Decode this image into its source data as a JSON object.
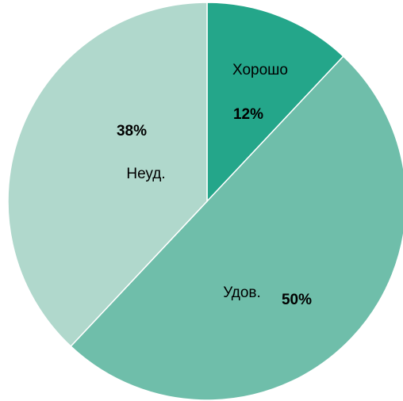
{
  "chart_data": {
    "type": "pie",
    "categories": [
      "Хорошо",
      "Удов.",
      "Неуд."
    ],
    "values": [
      12,
      50,
      38
    ],
    "value_labels": [
      "12%",
      "50%",
      "38%"
    ],
    "colors": [
      "#24a68a",
      "#6fbeaa",
      "#b0d8cc"
    ]
  }
}
